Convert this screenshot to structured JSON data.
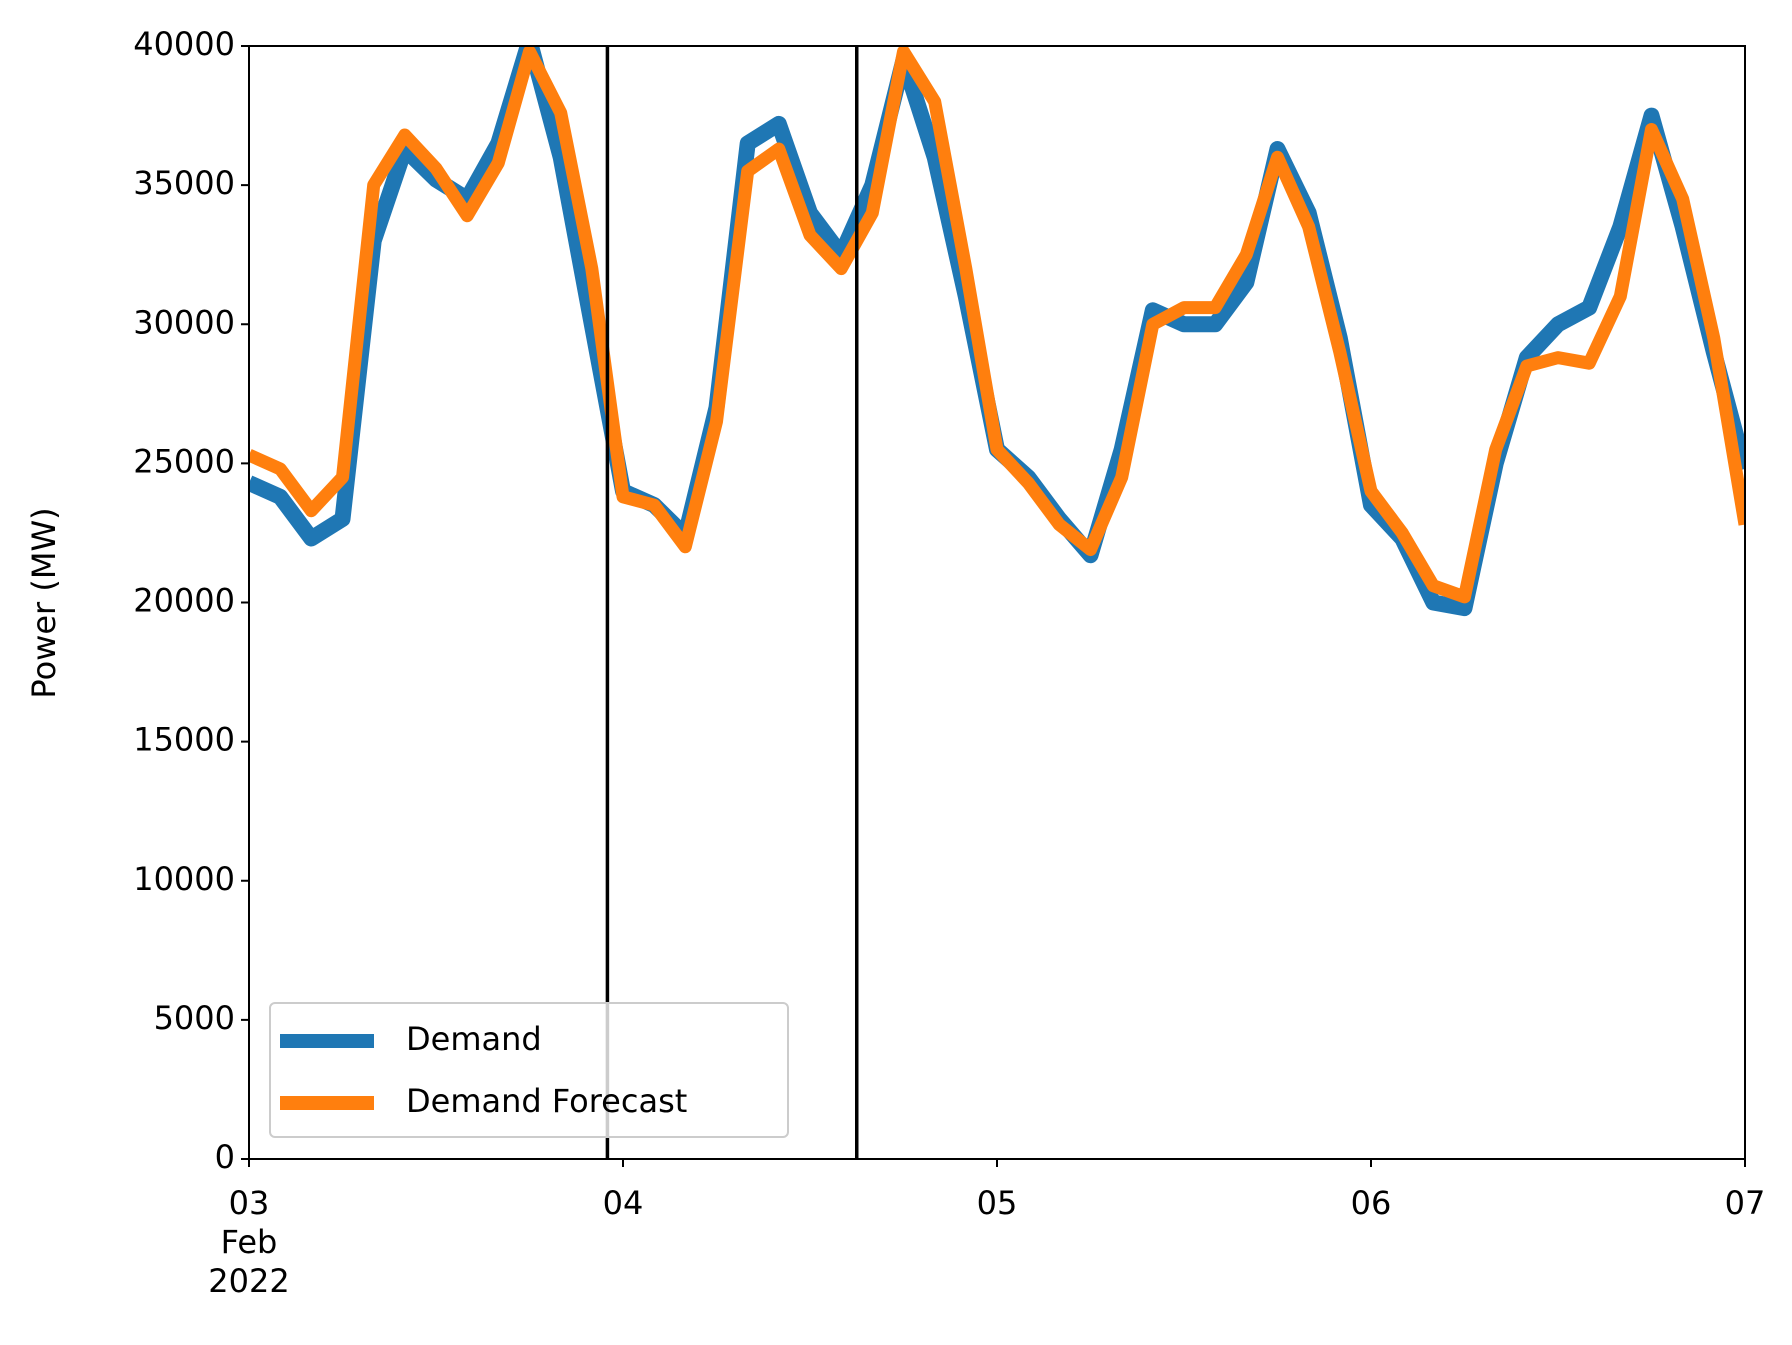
{
  "chart_data": {
    "type": "line",
    "ylabel": "Power (MW)",
    "x": [
      "2022-02-03T00:00",
      "2022-02-03T02:00",
      "2022-02-03T04:00",
      "2022-02-03T06:00",
      "2022-02-03T08:00",
      "2022-02-03T10:00",
      "2022-02-03T12:00",
      "2022-02-03T14:00",
      "2022-02-03T16:00",
      "2022-02-03T18:00",
      "2022-02-03T20:00",
      "2022-02-03T22:00",
      "2022-02-04T00:00",
      "2022-02-04T02:00",
      "2022-02-04T04:00",
      "2022-02-04T06:00",
      "2022-02-04T08:00",
      "2022-02-04T10:00",
      "2022-02-04T12:00",
      "2022-02-04T14:00",
      "2022-02-04T16:00",
      "2022-02-04T18:00",
      "2022-02-04T20:00",
      "2022-02-04T22:00",
      "2022-02-05T00:00",
      "2022-02-05T02:00",
      "2022-02-05T04:00",
      "2022-02-05T06:00",
      "2022-02-05T08:00",
      "2022-02-05T10:00",
      "2022-02-05T12:00",
      "2022-02-05T14:00",
      "2022-02-05T16:00",
      "2022-02-05T18:00",
      "2022-02-05T20:00",
      "2022-02-05T22:00",
      "2022-02-06T00:00",
      "2022-02-06T02:00",
      "2022-02-06T04:00",
      "2022-02-06T06:00",
      "2022-02-06T08:00",
      "2022-02-06T10:00",
      "2022-02-06T12:00",
      "2022-02-06T14:00",
      "2022-02-06T16:00",
      "2022-02-06T18:00",
      "2022-02-06T20:00",
      "2022-02-06T22:00",
      "2022-02-07T00:00"
    ],
    "series": [
      {
        "name": "Demand",
        "color": "#1f77b4",
        "values": [
          24300,
          23800,
          22300,
          23000,
          33000,
          36300,
          35200,
          34500,
          36500,
          40200,
          36000,
          30000,
          24000,
          23500,
          22400,
          27000,
          36500,
          37200,
          34000,
          32500,
          35000,
          39500,
          36000,
          31000,
          25500,
          24500,
          23000,
          21700,
          25500,
          30500,
          30000,
          30000,
          31500,
          36300,
          34000,
          29500,
          23500,
          22300,
          20000,
          19800,
          25000,
          28800,
          30000,
          30600,
          33500,
          37500,
          33500,
          29000,
          24800
        ]
      },
      {
        "name": "Demand Forecast",
        "color": "#ff7f0e",
        "values": [
          25300,
          24800,
          23300,
          24500,
          35000,
          36800,
          35600,
          33900,
          35800,
          39800,
          37600,
          32000,
          23800,
          23500,
          22000,
          26500,
          35500,
          36300,
          33200,
          32000,
          34000,
          39800,
          38000,
          32000,
          25500,
          24300,
          22800,
          21900,
          24500,
          30000,
          30600,
          30600,
          32500,
          36000,
          33500,
          29000,
          24000,
          22500,
          20600,
          20200,
          25500,
          28500,
          28800,
          28600,
          31000,
          37000,
          34500,
          29500,
          22800
        ]
      }
    ],
    "vlines": [
      "2022-02-03T23:00",
      "2022-02-04T15:00"
    ],
    "vline_color": "#000000",
    "xlim": [
      "2022-02-03T00:00",
      "2022-02-07T00:00"
    ],
    "xticks": [
      {
        "value": "2022-02-03T00:00",
        "label": [
          "03",
          "Feb",
          "2022"
        ]
      },
      {
        "value": "2022-02-04T00:00",
        "label": [
          "04"
        ]
      },
      {
        "value": "2022-02-05T00:00",
        "label": [
          "05"
        ]
      },
      {
        "value": "2022-02-06T00:00",
        "label": [
          "06"
        ]
      },
      {
        "value": "2022-02-07T00:00",
        "label": [
          "07"
        ]
      }
    ],
    "ylim": [
      0,
      40000
    ],
    "yticks": [
      0,
      5000,
      10000,
      15000,
      20000,
      25000,
      30000,
      35000,
      40000
    ],
    "grid": false,
    "legend": "lower left"
  }
}
